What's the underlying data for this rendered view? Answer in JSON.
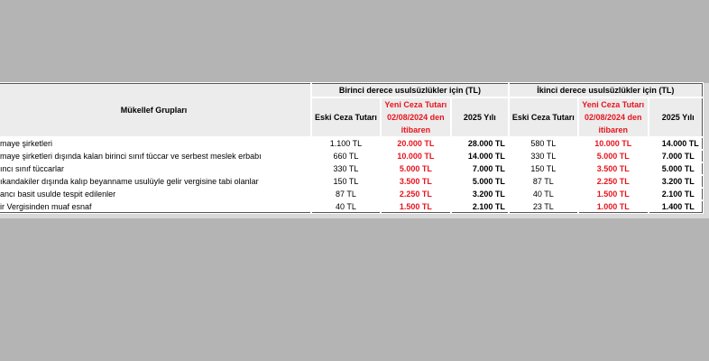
{
  "table": {
    "group_header": "Mükellef Grupları",
    "section_headers": [
      "Birinci derece usulsüzlükler için (TL)",
      "İkinci derece usulsüzlükler için (TL)"
    ],
    "sub_headers": {
      "old": "Eski Ceza Tutarı",
      "new_line1": "Yeni Ceza Tutarı",
      "new_line2": "02/08/2024 den",
      "new_line3": "itibaren",
      "year": "2025 Yılı",
      "year_clipped": "2025 Yılı"
    },
    "rows": [
      {
        "group": "maye şirketleri",
        "v": [
          "1.100 TL",
          "20.000 TL",
          "28.000 TL",
          "580 TL",
          "10.000 TL",
          "14.000 TL"
        ]
      },
      {
        "group": "maye  şirketleri  dışında  kalan  birinci sınıf tüccar ve serbest meslek erbabı",
        "v": [
          "660 TL",
          "10.000 TL",
          "14.000 TL",
          "330 TL",
          "5.000 TL",
          "7.000 TL"
        ]
      },
      {
        "group": "ıncı sınıf tüccarlar",
        "v": [
          "330 TL",
          "5.000 TL",
          "7.000 TL",
          "150 TL",
          "3.500 TL",
          "5.000 TL"
        ]
      },
      {
        "group": "ıkandakiler   dışında   kalıp   beyanname usulüyle gelir vergisine tabi olanlar",
        "v": [
          "150 TL",
          "3.500 TL",
          "5.000 TL",
          "87 TL",
          "2.250 TL",
          "3.200 TL"
        ]
      },
      {
        "group": "ancı basit usulde tespit edilenler",
        "v": [
          "87 TL",
          "2.250 TL",
          "3.200 TL",
          "40 TL",
          "1.500 TL",
          "2.100 TL"
        ]
      },
      {
        "group": "ir Vergisinden muaf esnaf",
        "v": [
          "40 TL",
          "1.500 TL",
          "2.100 TL",
          "23 TL",
          "1.000 TL",
          "1.400 TL"
        ]
      }
    ],
    "colors": {
      "new_amount": "#e8141c",
      "header_bg": "#ececec",
      "background": "#b4b4b4"
    }
  }
}
